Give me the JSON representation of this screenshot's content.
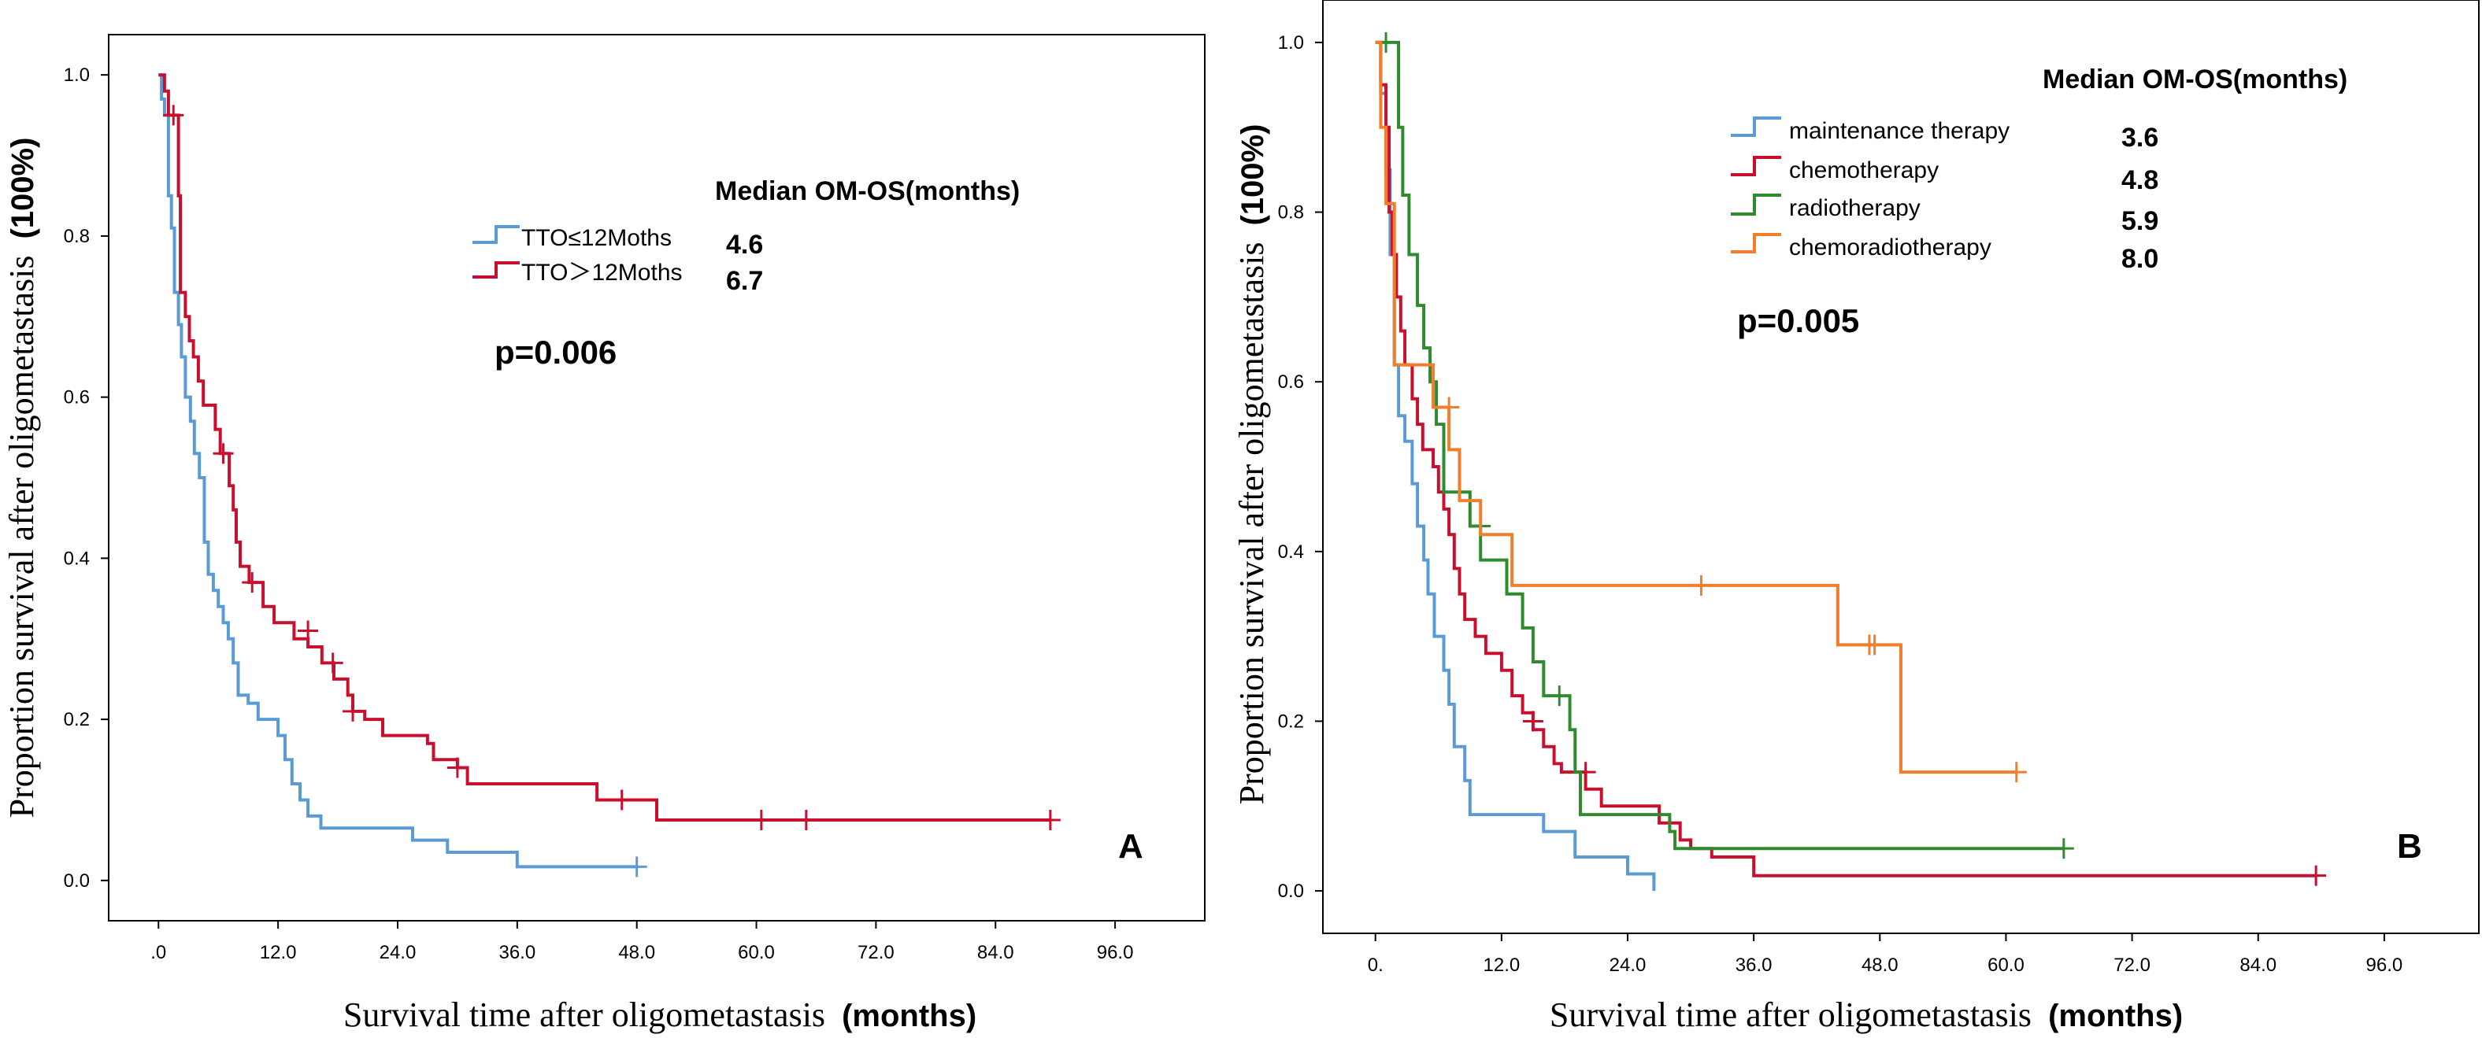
{
  "chart_data": [
    {
      "type": "line",
      "subtype": "kaplan-meier",
      "panel_label": "A",
      "xlabel": "Survival time after oligometastasis",
      "xlabel_units": "(months)",
      "ylabel": "Proportion survival after oligometastasis",
      "ylabel_units": "(100%)",
      "x_ticks": [
        ".0",
        "12.0",
        "24.0",
        "36.0",
        "48.0",
        "60.0",
        "72.0",
        "84.0",
        "96.0"
      ],
      "y_ticks": [
        "0.0",
        "0.2",
        "0.4",
        "0.6",
        "0.8",
        "1.0"
      ],
      "xlim": [
        -5,
        105
      ],
      "ylim": [
        -0.05,
        1.05
      ],
      "legend_title": "Median OM-OS(months)",
      "p_value": "p=0.006",
      "series": [
        {
          "name": "TTO≤12Moths",
          "median": "4.6",
          "color": "#5b9bd5",
          "steps": [
            [
              0,
              1.0
            ],
            [
              0.3,
              0.97
            ],
            [
              0.6,
              0.95
            ],
            [
              1.0,
              0.85
            ],
            [
              1.3,
              0.81
            ],
            [
              1.6,
              0.73
            ],
            [
              2.0,
              0.69
            ],
            [
              2.3,
              0.65
            ],
            [
              2.7,
              0.6
            ],
            [
              3.2,
              0.57
            ],
            [
              3.6,
              0.53
            ],
            [
              4.1,
              0.5
            ],
            [
              4.6,
              0.42
            ],
            [
              5.0,
              0.38
            ],
            [
              5.5,
              0.36
            ],
            [
              6.0,
              0.34
            ],
            [
              6.5,
              0.32
            ],
            [
              7.0,
              0.3
            ],
            [
              7.5,
              0.27
            ],
            [
              8.0,
              0.23
            ],
            [
              9.0,
              0.22
            ],
            [
              10.0,
              0.2
            ],
            [
              12.0,
              0.18
            ],
            [
              12.7,
              0.15
            ],
            [
              13.4,
              0.12
            ],
            [
              14.2,
              0.1
            ],
            [
              15.0,
              0.08
            ],
            [
              16.3,
              0.065
            ],
            [
              25.5,
              0.05
            ],
            [
              29.0,
              0.035
            ],
            [
              36.0,
              0.017
            ],
            [
              48.0,
              0.017
            ]
          ],
          "censors": [
            [
              48.0,
              0.017
            ]
          ]
        },
        {
          "name": "TTO＞12Moths",
          "median": "6.7",
          "color": "#c8102e",
          "steps": [
            [
              0,
              1.0
            ],
            [
              0.6,
              0.98
            ],
            [
              1.0,
              0.95
            ],
            [
              2.0,
              0.85
            ],
            [
              2.2,
              0.73
            ],
            [
              2.7,
              0.7
            ],
            [
              3.1,
              0.67
            ],
            [
              3.5,
              0.65
            ],
            [
              4.0,
              0.62
            ],
            [
              4.5,
              0.59
            ],
            [
              5.7,
              0.56
            ],
            [
              6.2,
              0.53
            ],
            [
              7.1,
              0.49
            ],
            [
              7.5,
              0.46
            ],
            [
              7.8,
              0.42
            ],
            [
              8.2,
              0.39
            ],
            [
              9.1,
              0.37
            ],
            [
              10.5,
              0.34
            ],
            [
              11.6,
              0.32
            ],
            [
              13.6,
              0.3
            ],
            [
              15.0,
              0.29
            ],
            [
              16.4,
              0.27
            ],
            [
              17.6,
              0.25
            ],
            [
              19.0,
              0.23
            ],
            [
              19.5,
              0.21
            ],
            [
              20.7,
              0.2
            ],
            [
              22.5,
              0.18
            ],
            [
              27.0,
              0.17
            ],
            [
              27.6,
              0.15
            ],
            [
              30.0,
              0.14
            ],
            [
              31.0,
              0.12
            ],
            [
              44.0,
              0.1
            ],
            [
              50.0,
              0.075
            ],
            [
              89.5,
              0.075
            ]
          ],
          "censors": [
            [
              1.5,
              0.95
            ],
            [
              6.5,
              0.53
            ],
            [
              9.4,
              0.37
            ],
            [
              15.0,
              0.31
            ],
            [
              17.5,
              0.27
            ],
            [
              19.5,
              0.21
            ],
            [
              30.0,
              0.14
            ],
            [
              46.5,
              0.1
            ],
            [
              60.5,
              0.075
            ],
            [
              65.0,
              0.075
            ],
            [
              89.5,
              0.075
            ]
          ]
        }
      ]
    },
    {
      "type": "line",
      "subtype": "kaplan-meier",
      "panel_label": "B",
      "xlabel": "Survival time after oligometastasis",
      "xlabel_units": "(months)",
      "ylabel": "Proportion survival after oligometastasis",
      "ylabel_units": "(100%)",
      "x_ticks": [
        "0.",
        "12.0",
        "24.0",
        "36.0",
        "48.0",
        "60.0",
        "72.0",
        "84.0",
        "96.0"
      ],
      "y_ticks": [
        "0.0",
        "0.2",
        "0.4",
        "0.6",
        "0.8",
        "1.0"
      ],
      "xlim": [
        -5,
        105
      ],
      "ylim": [
        -0.05,
        1.05
      ],
      "legend_title": "Median OM-OS(months)",
      "p_value": "p=0.005",
      "series": [
        {
          "name": "maintenance therapy",
          "median": "3.6",
          "color": "#5b9bd5",
          "steps": [
            [
              0,
              1.0
            ],
            [
              0.5,
              0.94
            ],
            [
              1.0,
              0.85
            ],
            [
              1.4,
              0.75
            ],
            [
              1.8,
              0.62
            ],
            [
              2.2,
              0.56
            ],
            [
              2.8,
              0.53
            ],
            [
              3.5,
              0.48
            ],
            [
              4.0,
              0.43
            ],
            [
              4.6,
              0.39
            ],
            [
              5.0,
              0.35
            ],
            [
              5.6,
              0.3
            ],
            [
              6.5,
              0.26
            ],
            [
              7.0,
              0.22
            ],
            [
              7.5,
              0.17
            ],
            [
              8.5,
              0.13
            ],
            [
              9.0,
              0.09
            ],
            [
              16.0,
              0.07
            ],
            [
              19.0,
              0.04
            ],
            [
              24.0,
              0.02
            ],
            [
              26.5,
              0.0
            ]
          ],
          "censors": []
        },
        {
          "name": "chemotherapy",
          "median": "4.8",
          "color": "#c8102e",
          "steps": [
            [
              0,
              1.0
            ],
            [
              0.5,
              0.95
            ],
            [
              1.0,
              0.9
            ],
            [
              1.3,
              0.8
            ],
            [
              1.6,
              0.75
            ],
            [
              2.0,
              0.7
            ],
            [
              2.4,
              0.66
            ],
            [
              2.8,
              0.62
            ],
            [
              3.5,
              0.58
            ],
            [
              4.0,
              0.55
            ],
            [
              4.5,
              0.52
            ],
            [
              5.5,
              0.5
            ],
            [
              6.0,
              0.47
            ],
            [
              6.5,
              0.45
            ],
            [
              7.0,
              0.42
            ],
            [
              7.5,
              0.38
            ],
            [
              8.0,
              0.35
            ],
            [
              8.5,
              0.32
            ],
            [
              9.5,
              0.3
            ],
            [
              10.5,
              0.28
            ],
            [
              12.0,
              0.26
            ],
            [
              13.0,
              0.23
            ],
            [
              14.0,
              0.21
            ],
            [
              15.0,
              0.19
            ],
            [
              16.0,
              0.17
            ],
            [
              17.0,
              0.15
            ],
            [
              17.7,
              0.14
            ],
            [
              20.0,
              0.12
            ],
            [
              21.5,
              0.1
            ],
            [
              27.0,
              0.08
            ],
            [
              29.0,
              0.06
            ],
            [
              30.0,
              0.05
            ],
            [
              32.0,
              0.04
            ],
            [
              36.0,
              0.018
            ],
            [
              89.5,
              0.018
            ]
          ],
          "censors": [
            [
              15.0,
              0.2
            ],
            [
              20.0,
              0.14
            ],
            [
              89.5,
              0.018
            ]
          ]
        },
        {
          "name": "radiotherapy",
          "median": "5.9",
          "color": "#2e8b2e",
          "steps": [
            [
              0,
              1.0
            ],
            [
              1.8,
              1.0
            ],
            [
              2.2,
              0.9
            ],
            [
              2.6,
              0.82
            ],
            [
              3.2,
              0.75
            ],
            [
              4.0,
              0.69
            ],
            [
              4.6,
              0.64
            ],
            [
              5.2,
              0.6
            ],
            [
              5.8,
              0.55
            ],
            [
              6.5,
              0.47
            ],
            [
              9.0,
              0.43
            ],
            [
              10.0,
              0.39
            ],
            [
              12.5,
              0.35
            ],
            [
              14.0,
              0.31
            ],
            [
              15.0,
              0.27
            ],
            [
              16.0,
              0.23
            ],
            [
              18.5,
              0.19
            ],
            [
              19.0,
              0.14
            ],
            [
              19.5,
              0.09
            ],
            [
              28.0,
              0.07
            ],
            [
              28.5,
              0.05
            ],
            [
              65.5,
              0.05
            ]
          ],
          "censors": [
            [
              1.0,
              1.0
            ],
            [
              10.0,
              0.43
            ],
            [
              17.5,
              0.23
            ],
            [
              65.5,
              0.05
            ]
          ]
        },
        {
          "name": "chemoradiotherapy",
          "median": "8.0",
          "color": "#f07e2b",
          "steps": [
            [
              0,
              1.0
            ],
            [
              0.5,
              0.9
            ],
            [
              1.0,
              0.81
            ],
            [
              1.8,
              0.62
            ],
            [
              5.5,
              0.57
            ],
            [
              7.0,
              0.52
            ],
            [
              8.0,
              0.46
            ],
            [
              10.0,
              0.42
            ],
            [
              13.0,
              0.36
            ],
            [
              44.0,
              0.29
            ],
            [
              50.0,
              0.14
            ],
            [
              61.0,
              0.14
            ]
          ],
          "censors": [
            [
              7.0,
              0.57
            ],
            [
              31.0,
              0.36
            ],
            [
              47.0,
              0.29
            ],
            [
              47.5,
              0.29
            ],
            [
              61.0,
              0.14
            ]
          ]
        }
      ]
    }
  ]
}
